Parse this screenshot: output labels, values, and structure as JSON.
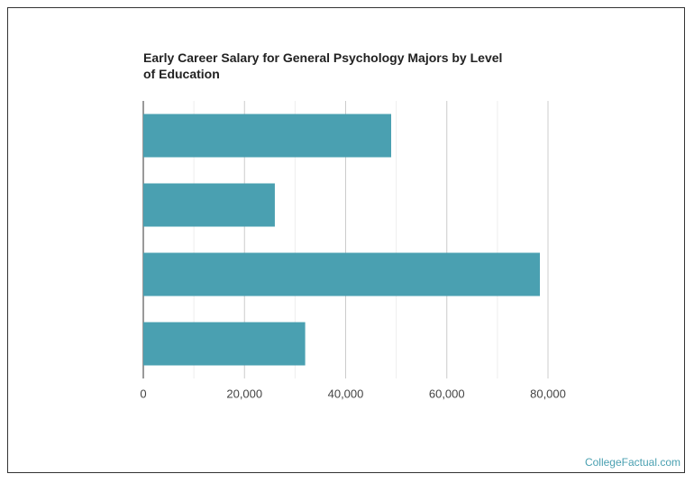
{
  "chart_data": {
    "type": "hbar",
    "title": "Early Career Salary for General Psychology Majors by Level of Education",
    "categories": [
      null,
      null,
      null,
      null
    ],
    "values": [
      49000,
      26000,
      78400,
      32000
    ],
    "color": "#4aa0b1",
    "xlim": [
      0,
      80000
    ],
    "xticks": [
      0,
      {
        "value": 20000,
        "label": "20,000"
      },
      {
        "value": 40000,
        "label": "40,000"
      },
      {
        "value": 60000,
        "label": "60,000"
      },
      {
        "value": 80000,
        "label": "80,000"
      }
    ],
    "minor_xticks": [
      10000,
      30000,
      50000,
      70000
    ],
    "grid": true,
    "source": "CollegeFactual.com"
  }
}
